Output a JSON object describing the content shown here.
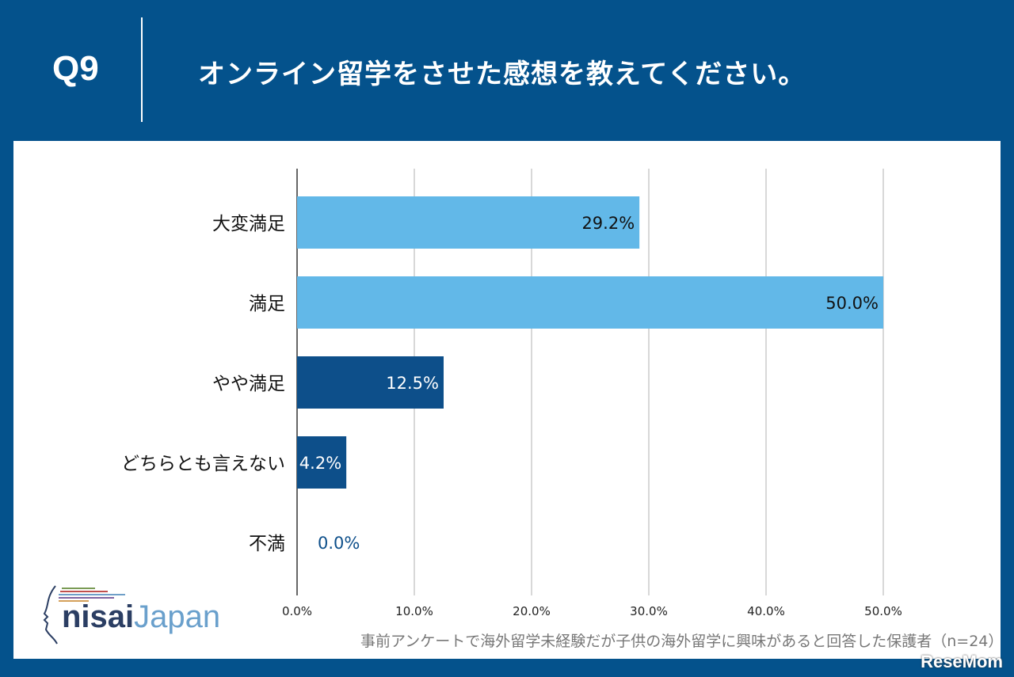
{
  "header": {
    "question": "Q9",
    "title": "オンライン留学をさせた感想を教えてください。"
  },
  "footer": {
    "note": "事前アンケートで海外留学未経験だが子供の海外留学に興味があると回答した保護者（n=24）",
    "logo_brand": "nisai",
    "logo_suffix": "Japan",
    "watermark": "ReseMom"
  },
  "colors": {
    "background": "#04528c",
    "light_bar": "#62b8e8",
    "dark_bar": "#0d4f8a"
  },
  "chart_data": {
    "type": "bar",
    "orientation": "horizontal",
    "categories": [
      "大変満足",
      "満足",
      "やや満足",
      "どちらとも言えない",
      "不満"
    ],
    "values": [
      29.2,
      50.0,
      12.5,
      4.2,
      0.0
    ],
    "data_labels": [
      "29.2%",
      "50.0%",
      "12.5%",
      "4.2%",
      "0.0%"
    ],
    "bar_colors": [
      "#62b8e8",
      "#62b8e8",
      "#0d4f8a",
      "#0d4f8a",
      "#0d4f8a"
    ],
    "xlim": [
      0,
      50
    ],
    "xticks": [
      "0.0%",
      "10.0%",
      "20.0%",
      "30.0%",
      "40.0%",
      "50.0%"
    ],
    "grid": true
  }
}
